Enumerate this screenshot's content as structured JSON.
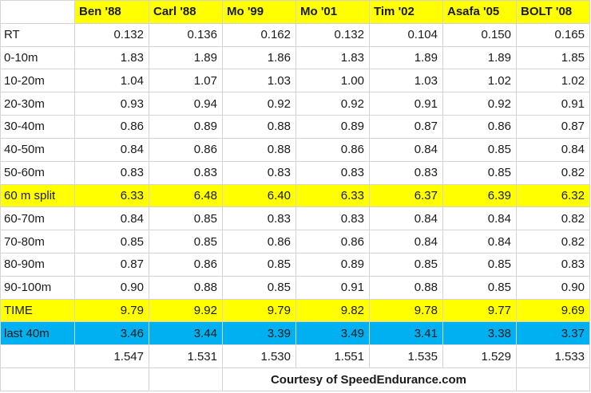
{
  "header": {
    "corner": "",
    "athletes": [
      "Ben '88",
      "Carl '88",
      "Mo '99",
      "Mo '01",
      "Tim '02",
      "Asafa '05",
      "BOLT '08"
    ]
  },
  "rows": [
    {
      "label": "RT",
      "values": [
        "0.132",
        "0.136",
        "0.162",
        "0.132",
        "0.104",
        "0.150",
        "0.165"
      ],
      "highlight": "none"
    },
    {
      "label": "0-10m",
      "values": [
        "1.83",
        "1.89",
        "1.86",
        "1.83",
        "1.89",
        "1.89",
        "1.85"
      ],
      "highlight": "none"
    },
    {
      "label": "10-20m",
      "values": [
        "1.04",
        "1.07",
        "1.03",
        "1.00",
        "1.03",
        "1.02",
        "1.02"
      ],
      "highlight": "none"
    },
    {
      "label": "20-30m",
      "values": [
        "0.93",
        "0.94",
        "0.92",
        "0.92",
        "0.91",
        "0.92",
        "0.91"
      ],
      "highlight": "none"
    },
    {
      "label": "30-40m",
      "values": [
        "0.86",
        "0.89",
        "0.88",
        "0.89",
        "0.87",
        "0.86",
        "0.87"
      ],
      "highlight": "none"
    },
    {
      "label": "40-50m",
      "values": [
        "0.84",
        "0.86",
        "0.88",
        "0.86",
        "0.84",
        "0.85",
        "0.84"
      ],
      "highlight": "none"
    },
    {
      "label": "50-60m",
      "values": [
        "0.83",
        "0.83",
        "0.83",
        "0.83",
        "0.83",
        "0.85",
        "0.82"
      ],
      "highlight": "none"
    },
    {
      "label": "60 m split",
      "values": [
        "6.33",
        "6.48",
        "6.40",
        "6.33",
        "6.37",
        "6.39",
        "6.32"
      ],
      "highlight": "yellow"
    },
    {
      "label": "60-70m",
      "values": [
        "0.84",
        "0.85",
        "0.83",
        "0.83",
        "0.84",
        "0.84",
        "0.82"
      ],
      "highlight": "none"
    },
    {
      "label": "70-80m",
      "values": [
        "0.85",
        "0.85",
        "0.86",
        "0.86",
        "0.84",
        "0.84",
        "0.82"
      ],
      "highlight": "none"
    },
    {
      "label": "80-90m",
      "values": [
        "0.87",
        "0.86",
        "0.85",
        "0.89",
        "0.85",
        "0.85",
        "0.83"
      ],
      "highlight": "none"
    },
    {
      "label": "90-100m",
      "values": [
        "0.90",
        "0.88",
        "0.85",
        "0.91",
        "0.88",
        "0.85",
        "0.90"
      ],
      "highlight": "none"
    },
    {
      "label": "TIME",
      "values": [
        "9.79",
        "9.92",
        "9.79",
        "9.82",
        "9.78",
        "9.77",
        "9.69"
      ],
      "highlight": "yellow"
    },
    {
      "label": "last 40m",
      "values": [
        "3.46",
        "3.44",
        "3.39",
        "3.49",
        "3.41",
        "3.38",
        "3.37"
      ],
      "highlight": "blue"
    },
    {
      "label": "",
      "values": [
        "1.547",
        "1.531",
        "1.530",
        "1.551",
        "1.535",
        "1.529",
        "1.533"
      ],
      "highlight": "none"
    }
  ],
  "footer": {
    "courtesy": "Courtesy of SpeedEndurance.com"
  },
  "colors": {
    "header_highlight": "#ffff00",
    "row_yellow": "#ffff00",
    "row_blue": "#00b0f0",
    "gridline": "#d4d4d4"
  }
}
